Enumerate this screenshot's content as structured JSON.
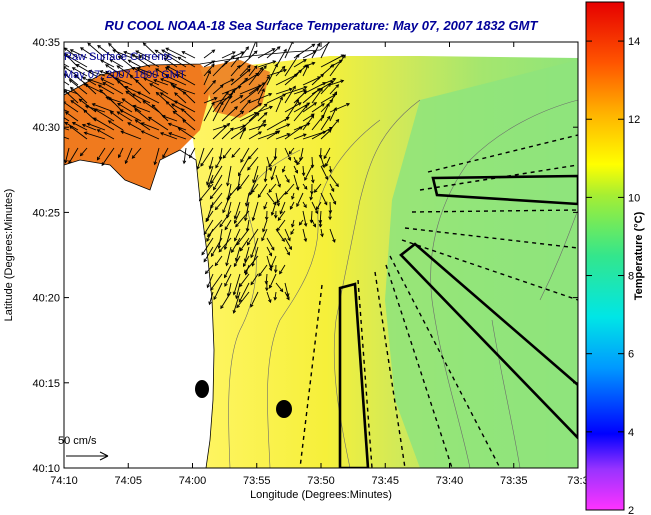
{
  "title": "RU COOL  NOAA-18  Sea Surface Temperature:  May 07, 2007 1832 GMT",
  "legend_lines": [
    "Raw Surface Currents",
    "May 07, 2007 1800 GMT"
  ],
  "scale_label": "50 cm/s",
  "colorbar": {
    "label": "Temperature (°C)",
    "ticks": [
      "2",
      "4",
      "6",
      "8",
      "10",
      "12",
      "14"
    ],
    "range": [
      2,
      15
    ]
  },
  "map": {
    "xlabel": "Longitude (Degrees:Minutes)",
    "ylabel": "Latitude (Degrees:Minutes)",
    "x_ticks": [
      "74:10",
      "74:05",
      "74:00",
      "73:55",
      "73:50",
      "73:45",
      "73:40",
      "73:35",
      "73:3"
    ],
    "y_ticks": [
      "40:35",
      "40:30",
      "40:25",
      "40:20",
      "40:15",
      "40:10"
    ]
  },
  "colors": {
    "title": "#000099",
    "land": "#ffffff",
    "warm": "#f07a1e",
    "mid": "#f2e81c",
    "cool": "#7fe07a"
  }
}
